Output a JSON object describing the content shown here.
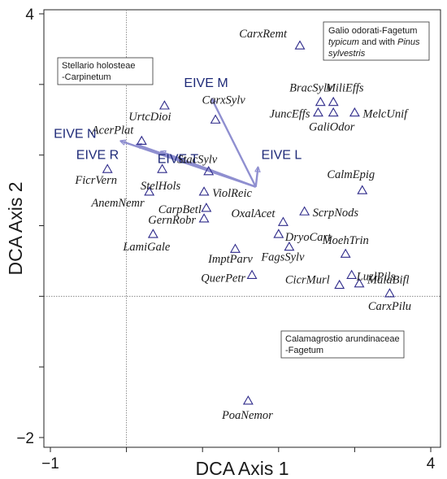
{
  "chart_data": {
    "type": "scatter",
    "xlabel": "DCA Axis 1",
    "ylabel": "DCA Axis 2",
    "xlim": [
      -1,
      4
    ],
    "ylim": [
      -2,
      4
    ],
    "x_ticks": [
      {
        "value": -1,
        "label": "−1"
      },
      {
        "value": 4,
        "label": "4"
      }
    ],
    "y_ticks": [
      {
        "value": 4,
        "label": "4"
      },
      {
        "value": -2,
        "label": "−2"
      }
    ],
    "reference_lines": {
      "x": 0,
      "y": 0
    },
    "marker": "open-triangle",
    "marker_color": "#2e2a8a",
    "vector_color": "#8f8fd0",
    "vector_label_color": "#1e2a78",
    "species": [
      {
        "name": "CarxRemt",
        "x": 2.28,
        "y": 3.55
      },
      {
        "name": "BracSylv",
        "x": 2.55,
        "y": 2.75
      },
      {
        "name": "MiliEffs",
        "x": 2.72,
        "y": 2.75
      },
      {
        "name": "JuncEffs",
        "x": 2.52,
        "y": 2.6
      },
      {
        "name": "GaliOdor",
        "x": 2.72,
        "y": 2.6
      },
      {
        "name": "MelcUnif",
        "x": 3.0,
        "y": 2.6
      },
      {
        "name": "UrtcDioi",
        "x": 0.5,
        "y": 2.7
      },
      {
        "name": "CarxSylv",
        "x": 1.17,
        "y": 2.5
      },
      {
        "name": "AcerPlat",
        "x": 0.2,
        "y": 2.2
      },
      {
        "name": "FicrVern",
        "x": -0.25,
        "y": 1.8
      },
      {
        "name": "StacSylv",
        "x": 1.08,
        "y": 1.77
      },
      {
        "name": "StelHols",
        "x": 0.47,
        "y": 1.8
      },
      {
        "name": "CalmEpig",
        "x": 3.1,
        "y": 1.5
      },
      {
        "name": "AnemNemr",
        "x": 0.3,
        "y": 1.48
      },
      {
        "name": "ViolReic",
        "x": 1.02,
        "y": 1.48
      },
      {
        "name": "CarpBetl",
        "x": 1.05,
        "y": 1.25
      },
      {
        "name": "ScrpNods",
        "x": 2.34,
        "y": 1.2
      },
      {
        "name": "GernRobr",
        "x": 1.02,
        "y": 1.1
      },
      {
        "name": "OxalAcet",
        "x": 2.06,
        "y": 1.05
      },
      {
        "name": "DryoCart",
        "x": 2.0,
        "y": 0.88
      },
      {
        "name": "LamiGale",
        "x": 0.35,
        "y": 0.88
      },
      {
        "name": "ImptParv",
        "x": 1.43,
        "y": 0.67
      },
      {
        "name": "FagsSylv",
        "x": 2.14,
        "y": 0.7
      },
      {
        "name": "MoehTrin",
        "x": 2.88,
        "y": 0.6
      },
      {
        "name": "QuerPetr",
        "x": 1.65,
        "y": 0.3
      },
      {
        "name": "LuzlPils",
        "x": 2.96,
        "y": 0.3
      },
      {
        "name": "CicrMurl",
        "x": 2.8,
        "y": 0.16
      },
      {
        "name": "MaiaBifl",
        "x": 3.06,
        "y": 0.18
      },
      {
        "name": "CarxPilu",
        "x": 3.46,
        "y": 0.04
      },
      {
        "name": "PoaNemor",
        "x": 1.6,
        "y": -1.48
      }
    ],
    "vector_origin": {
      "x": 1.7,
      "y": 1.55
    },
    "vectors": [
      {
        "name": "EIVE M",
        "x": 1.12,
        "y": 2.8
      },
      {
        "name": "EIVE N",
        "x": -0.08,
        "y": 2.2
      },
      {
        "name": "EIVE R",
        "x": 0.13,
        "y": 2.15
      },
      {
        "name": "EIVE T",
        "x": 0.45,
        "y": 2.05
      },
      {
        "name": "EIVE L",
        "x": 1.73,
        "y": 1.83
      }
    ],
    "annotations": [
      {
        "id": "galio",
        "lines": [
          {
            "text": "Galio odorati-Fagetum",
            "italic": false
          },
          {
            "text": "typicum",
            "italic": true,
            "rest": " and with "
          },
          {
            "text": "Pinus",
            "italic": true
          },
          {
            "text": "sylvestris",
            "italic": true
          }
        ]
      },
      {
        "id": "stellario",
        "lines": [
          "Stellario holosteae",
          "-Carpinetum"
        ]
      },
      {
        "id": "calama",
        "lines": [
          "Calamagrostio arundinaceae",
          "-Fagetum"
        ]
      }
    ]
  },
  "boxes": {
    "galio": {
      "line1": "Galio odorati-Fagetum",
      "line2a": "typicum",
      "line2b": " and with ",
      "line2c": "Pinus",
      "line3": "sylvestris"
    },
    "stellario": {
      "line1": "Stellario holosteae",
      "line2": "-Carpinetum"
    },
    "calama": {
      "line1": "Calamagrostio arundinaceae",
      "line2": "-Fagetum"
    }
  }
}
